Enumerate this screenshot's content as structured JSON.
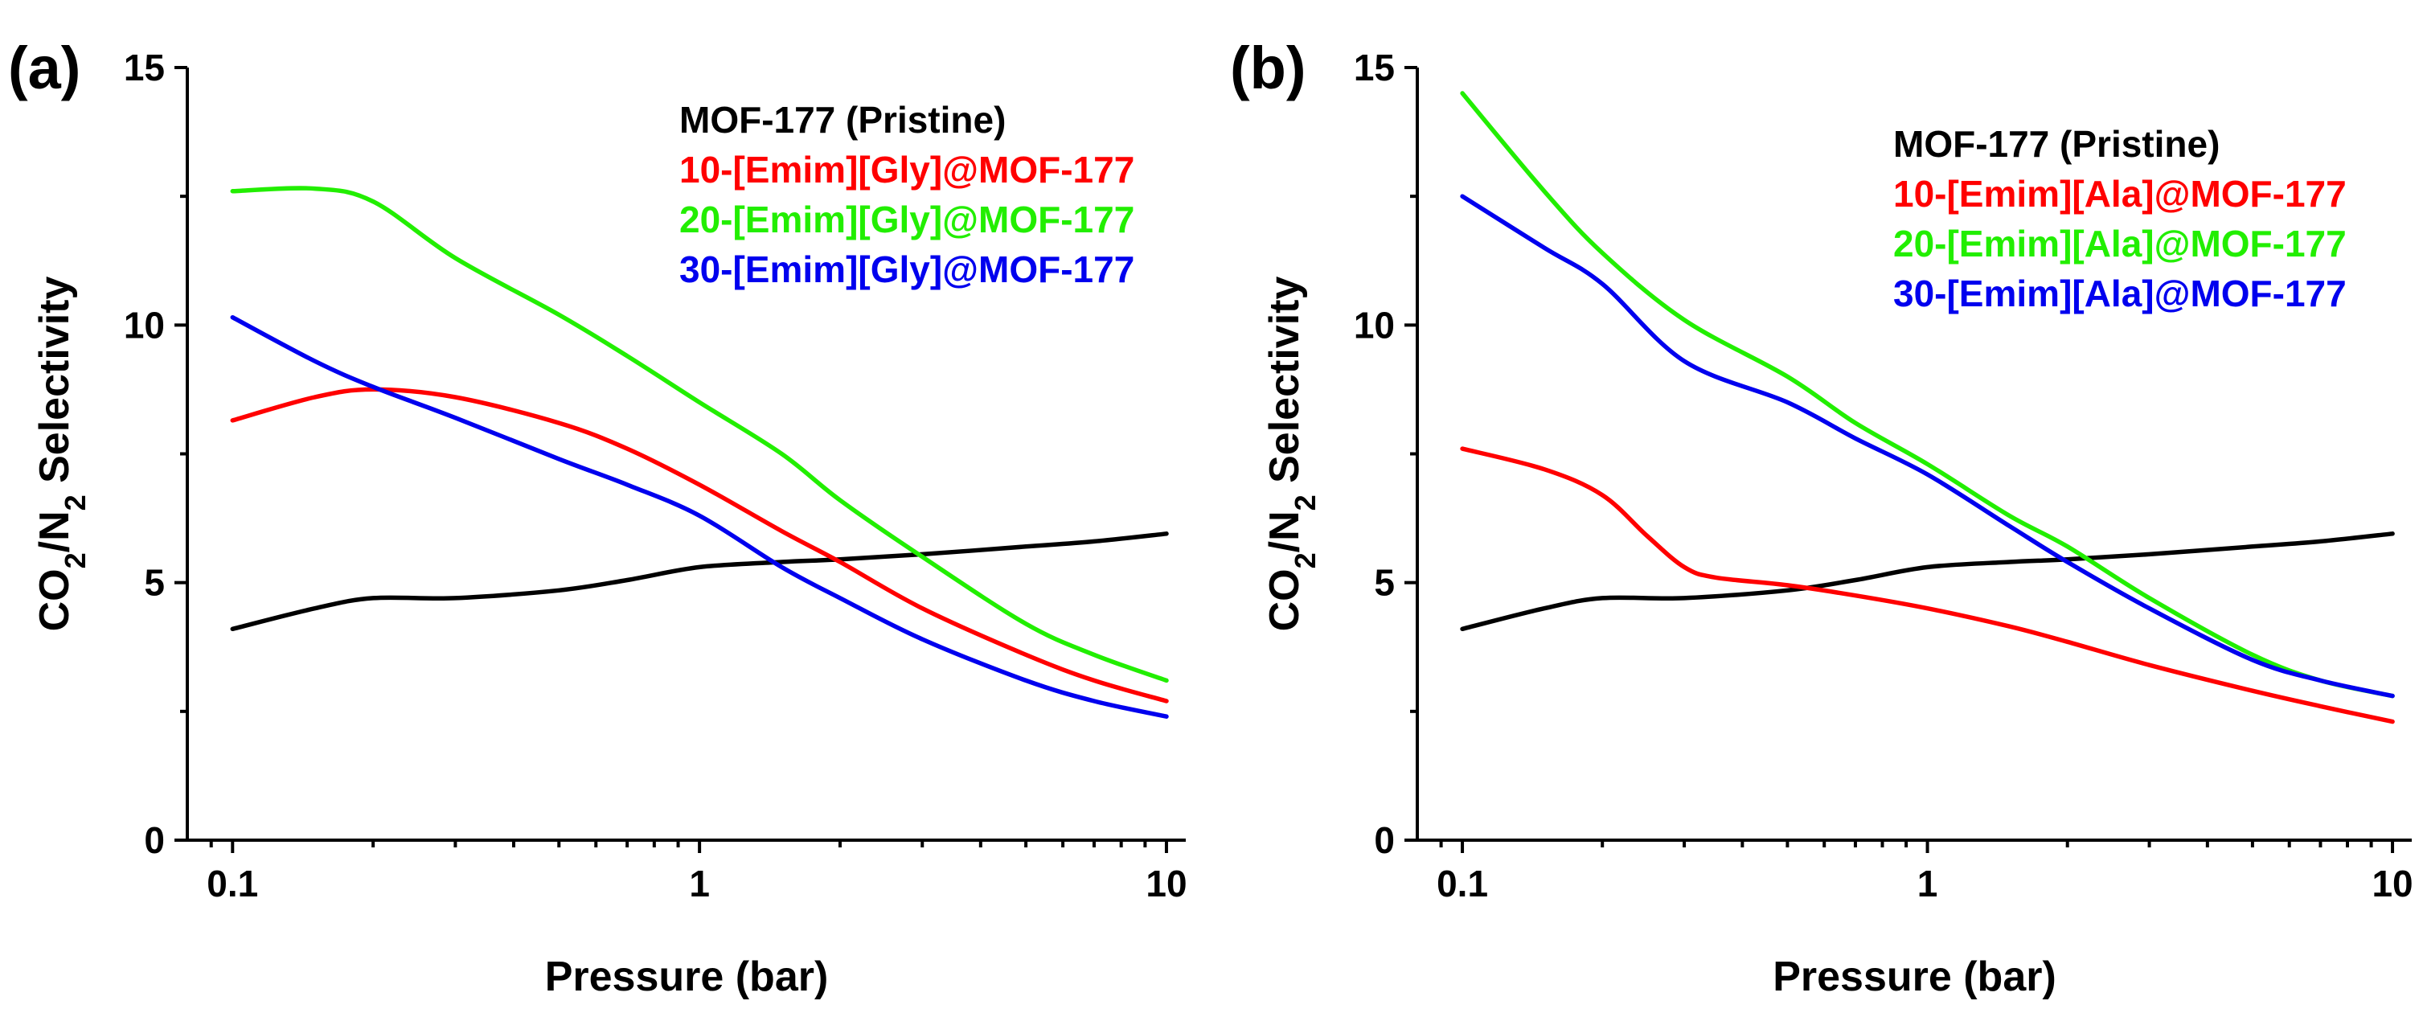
{
  "chart_data": [
    {
      "type": "line",
      "panel_label": "(a)",
      "xlabel": "Pressure (bar)",
      "ylabel_parts": [
        "CO",
        "2",
        "/N",
        "2",
        " Selectivity"
      ],
      "xscale": "log",
      "xlim": [
        0.08,
        11
      ],
      "ylim": [
        0,
        15
      ],
      "xticks": [
        0.1,
        1,
        10
      ],
      "xtick_labels": [
        "0.1",
        "1",
        "10"
      ],
      "yticks": [
        0,
        5,
        10,
        15
      ],
      "ytick_labels": [
        "0",
        "5",
        "10",
        "15"
      ],
      "legend_position": "top-right",
      "series": [
        {
          "name": "MOF-177 (Pristine)",
          "color": "#000000",
          "x": [
            0.1,
            0.15,
            0.2,
            0.3,
            0.5,
            0.7,
            1,
            1.5,
            2,
            3,
            5,
            7,
            10
          ],
          "y": [
            4.1,
            4.5,
            4.7,
            4.7,
            4.85,
            5.05,
            5.3,
            5.4,
            5.45,
            5.55,
            5.7,
            5.8,
            5.95
          ]
        },
        {
          "name": "10-[Emim][Gly]@MOF-177",
          "color": "#ff0000",
          "x": [
            0.1,
            0.15,
            0.2,
            0.3,
            0.5,
            0.7,
            1,
            1.5,
            2,
            3,
            5,
            7,
            10
          ],
          "y": [
            8.15,
            8.6,
            8.75,
            8.6,
            8.1,
            7.6,
            6.9,
            6.0,
            5.4,
            4.5,
            3.6,
            3.1,
            2.7
          ]
        },
        {
          "name": "20-[Emim][Gly]@MOF-177",
          "color": "#22ee00",
          "x": [
            0.1,
            0.15,
            0.2,
            0.3,
            0.5,
            0.7,
            1,
            1.5,
            2,
            3,
            5,
            7,
            10
          ],
          "y": [
            12.6,
            12.65,
            12.4,
            11.3,
            10.2,
            9.4,
            8.5,
            7.5,
            6.6,
            5.5,
            4.2,
            3.6,
            3.1
          ]
        },
        {
          "name": "30-[Emim][Gly]@MOF-177",
          "color": "#0000ee",
          "x": [
            0.1,
            0.15,
            0.2,
            0.3,
            0.5,
            0.7,
            1,
            1.5,
            2,
            3,
            5,
            7,
            10
          ],
          "y": [
            10.15,
            9.3,
            8.8,
            8.2,
            7.4,
            6.9,
            6.3,
            5.3,
            4.7,
            3.9,
            3.1,
            2.7,
            2.4
          ]
        }
      ]
    },
    {
      "type": "line",
      "panel_label": "(b)",
      "xlabel": "Pressure (bar)",
      "ylabel_parts": [
        "CO",
        "2",
        "/N",
        "2",
        " Selectivity"
      ],
      "xscale": "log",
      "xlim": [
        0.08,
        11
      ],
      "ylim": [
        0,
        15
      ],
      "xticks": [
        0.1,
        1,
        10
      ],
      "xtick_labels": [
        "0.1",
        "1",
        "10"
      ],
      "yticks": [
        0,
        5,
        10,
        15
      ],
      "ytick_labels": [
        "0",
        "5",
        "10",
        "15"
      ],
      "legend_position": "top-right",
      "series": [
        {
          "name": "MOF-177 (Pristine)",
          "color": "#000000",
          "x": [
            0.1,
            0.15,
            0.2,
            0.3,
            0.5,
            0.7,
            1,
            1.5,
            2,
            3,
            5,
            7,
            10
          ],
          "y": [
            4.1,
            4.5,
            4.7,
            4.7,
            4.85,
            5.05,
            5.3,
            5.4,
            5.45,
            5.55,
            5.7,
            5.8,
            5.95
          ]
        },
        {
          "name": "10-[Emim][Ala]@MOF-177",
          "color": "#ff0000",
          "x": [
            0.1,
            0.15,
            0.2,
            0.25,
            0.3,
            0.35,
            0.5,
            0.7,
            1,
            1.5,
            2,
            3,
            5,
            7,
            10
          ],
          "y": [
            7.6,
            7.2,
            6.7,
            5.9,
            5.3,
            5.1,
            4.95,
            4.75,
            4.5,
            4.15,
            3.85,
            3.4,
            2.9,
            2.6,
            2.3
          ]
        },
        {
          "name": "20-[Emim][Ala]@MOF-177",
          "color": "#22ee00",
          "x": [
            0.1,
            0.15,
            0.2,
            0.3,
            0.5,
            0.7,
            1,
            1.5,
            2,
            3,
            5,
            7,
            10
          ],
          "y": [
            14.5,
            12.6,
            11.4,
            10.1,
            9.0,
            8.1,
            7.3,
            6.3,
            5.7,
            4.7,
            3.6,
            3.1,
            2.8
          ]
        },
        {
          "name": "30-[Emim][Ala]@MOF-177",
          "color": "#0000ee",
          "x": [
            0.1,
            0.15,
            0.2,
            0.3,
            0.5,
            0.7,
            1,
            1.5,
            2,
            3,
            5,
            7,
            10
          ],
          "y": [
            12.5,
            11.5,
            10.8,
            9.3,
            8.5,
            7.8,
            7.1,
            6.1,
            5.4,
            4.5,
            3.5,
            3.1,
            2.8
          ]
        }
      ]
    }
  ]
}
